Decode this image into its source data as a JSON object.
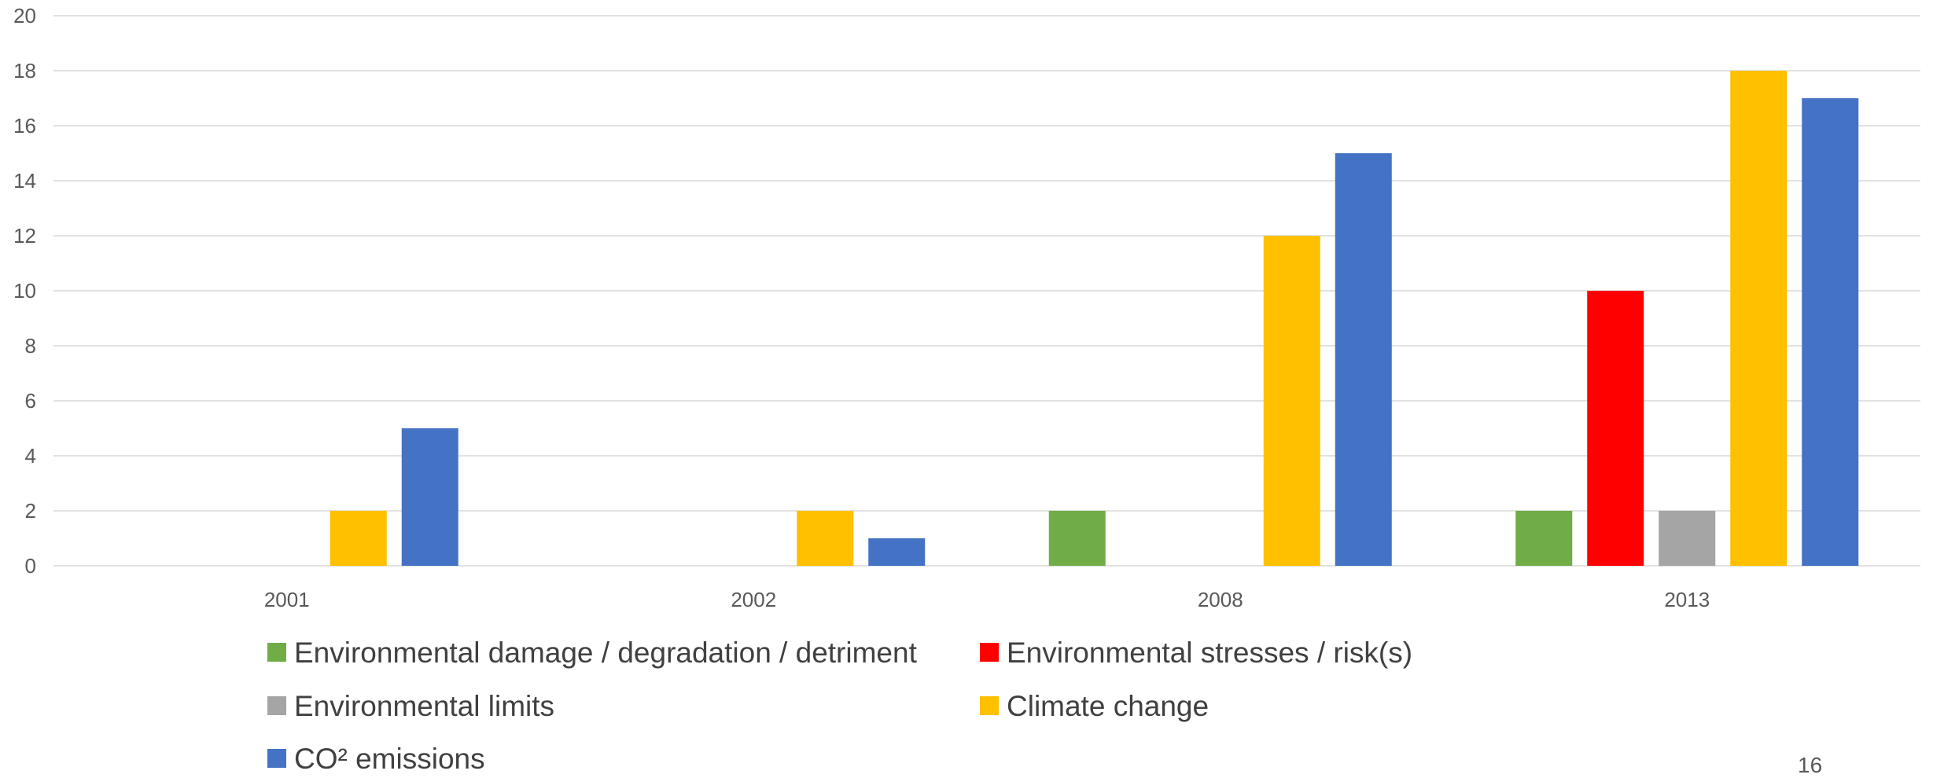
{
  "chart_data": {
    "type": "bar",
    "categories": [
      "2001",
      "2002",
      "2008",
      "2013"
    ],
    "series": [
      {
        "name": "Environmental damage / degradation / detriment",
        "color": "#70AD47",
        "values": [
          0,
          0,
          2,
          2
        ]
      },
      {
        "name": "Environmental stresses / risk(s)",
        "color": "#FF0000",
        "values": [
          0,
          0,
          0,
          10
        ]
      },
      {
        "name": "Environmental limits",
        "color": "#A5A5A5",
        "values": [
          0,
          0,
          0,
          2
        ]
      },
      {
        "name": "Climate change",
        "color": "#FFC000",
        "values": [
          2,
          2,
          12,
          18
        ]
      },
      {
        "name": "CO² emissions",
        "color": "#4472C4",
        "values": [
          5,
          1,
          15,
          17
        ]
      }
    ],
    "ylim": [
      0,
      20
    ],
    "yticks": [
      0,
      2,
      4,
      6,
      8,
      10,
      12,
      14,
      16,
      18,
      20
    ],
    "grid": true,
    "legend_position": "bottom",
    "title": "",
    "xlabel": "",
    "ylabel": ""
  },
  "page_number": "16"
}
